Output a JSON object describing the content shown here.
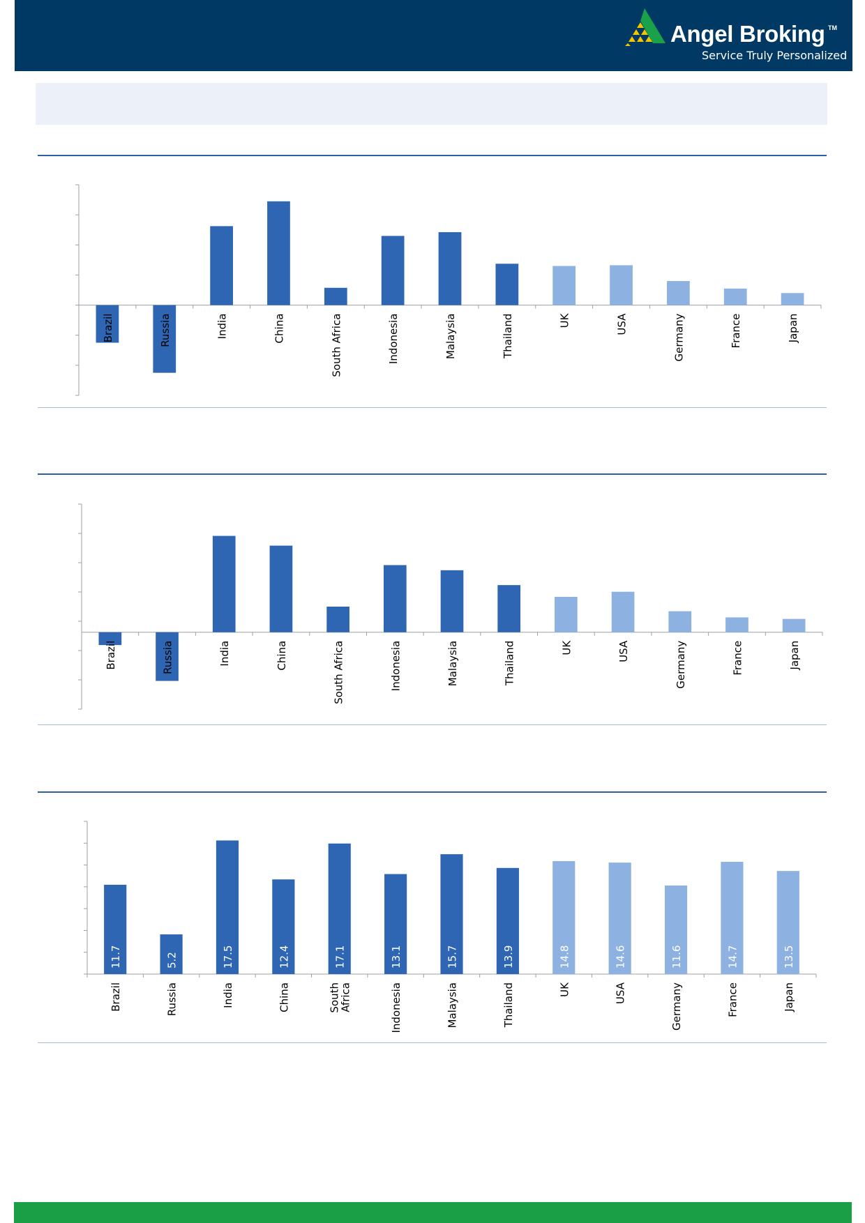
{
  "header": {
    "brand_name": "Angel Broking",
    "brand_tm": "TM",
    "tagline": "Service Truly Personalized",
    "logo_icon": "pyramid-icon"
  },
  "colors": {
    "navy": "#003963",
    "bar_dark": "#2f66b3",
    "bar_light": "#8db1e1",
    "accent_rule": "#2b5ea8",
    "footer_green": "#1a9e46",
    "logo_yellow": "#f5c400",
    "logo_green": "#1aa24a"
  },
  "chart_data": [
    {
      "type": "bar",
      "categories": [
        "Brazil",
        "Russia",
        "India",
        "China",
        "South Africa",
        "Indonesia",
        "Malaysia",
        "Thailand",
        "UK",
        "USA",
        "Germany",
        "France",
        "Japan"
      ],
      "values": [
        -5.0,
        -9.0,
        10.5,
        13.8,
        2.3,
        9.2,
        9.7,
        5.5,
        5.2,
        5.3,
        3.2,
        2.2,
        1.6
      ],
      "dark_count": 8,
      "ylim": [
        -12,
        16
      ],
      "gridlines": false,
      "legend": "none"
    },
    {
      "type": "bar",
      "categories": [
        "Brazil",
        "Russia",
        "India",
        "China",
        "South Africa",
        "Indonesia",
        "Malaysia",
        "Thailand",
        "UK",
        "USA",
        "Germany",
        "France",
        "Japan"
      ],
      "values": [
        -2.5,
        -9.5,
        18.8,
        16.9,
        5.0,
        13.1,
        12.1,
        9.2,
        6.9,
        7.9,
        4.1,
        2.9,
        2.6
      ],
      "dark_count": 8,
      "ylim": [
        -15,
        25
      ],
      "gridlines": false,
      "legend": "none"
    },
    {
      "type": "bar",
      "categories": [
        "Brazil",
        "Russia",
        "India",
        "China",
        "South Africa",
        "Indonesia",
        "Malaysia",
        "Thailand",
        "UK",
        "USA",
        "Germany",
        "France",
        "Japan"
      ],
      "category_lines": [
        [
          "Brazil"
        ],
        [
          "Russia"
        ],
        [
          "India"
        ],
        [
          "China"
        ],
        [
          "South",
          "Africa"
        ],
        [
          "Indonesia"
        ],
        [
          "Malaysia"
        ],
        [
          "Thailand"
        ],
        [
          "UK"
        ],
        [
          "USA"
        ],
        [
          "Germany"
        ],
        [
          "France"
        ],
        [
          "Japan"
        ]
      ],
      "values": [
        11.7,
        5.2,
        17.5,
        12.4,
        17.1,
        13.1,
        15.7,
        13.9,
        14.8,
        14.6,
        11.6,
        14.7,
        13.5
      ],
      "data_labels": [
        "11.7",
        "5.2",
        "17.5",
        "12.4",
        "17.1",
        "13.1",
        "15.7",
        "13.9",
        "14.8",
        "14.6",
        "11.6",
        "14.7",
        "13.5"
      ],
      "dark_count": 8,
      "ylim": [
        0,
        20
      ],
      "gridlines": false,
      "legend": "none"
    }
  ]
}
